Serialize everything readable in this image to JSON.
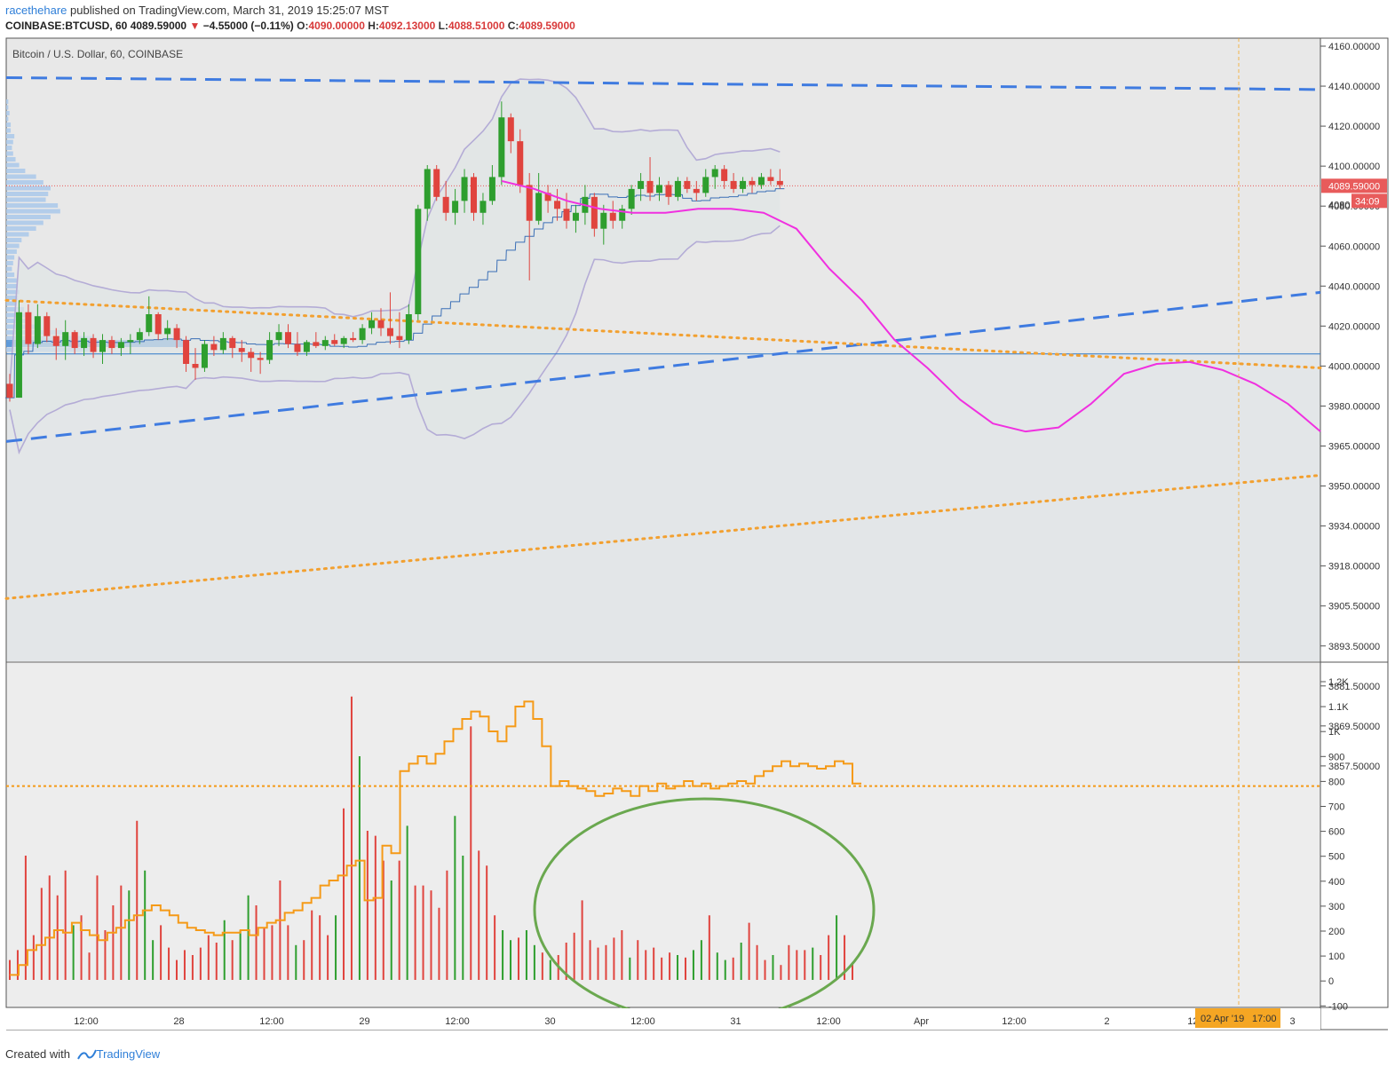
{
  "header": {
    "author": "racethehare",
    "published_text": "published on TradingView.com, March 31, 2019 15:25:07 MST",
    "symbol": "COINBASE:BTCUSD, 60",
    "last": "4089.59000",
    "change": "−4.55000 (−0.11%)",
    "open_label": "O:",
    "open": "4090.00000",
    "high_label": "H:",
    "high": "4092.13000",
    "low_label": "L:",
    "low": "4088.51000",
    "close_label": "C:",
    "close": "4089.59000"
  },
  "colors": {
    "up": "#2e9e2e",
    "down": "#e0443e",
    "bollinger": "#b4acd6",
    "bb_fill": "#dfe6e6",
    "trend_blue": "#3f7be0",
    "trend_orange": "#f2a030",
    "forecast": "#f030e0",
    "volume_ma": "#f59a17",
    "ellipse": "#6aa84f",
    "price_tag": "#e85b5b",
    "date_tag": "#f5a623"
  },
  "chart_data": [
    {
      "type": "candlestick",
      "title": "Bitcoin / U.S. Dollar, 60, COINBASE",
      "y_ticks": [
        "4160.00000",
        "4140.00000",
        "4120.00000",
        "4100.00000",
        "4080.00000",
        "4060.00000",
        "4040.00000",
        "4020.00000",
        "4000.00000",
        "3980.00000",
        "3965.00000",
        "3950.00000",
        "3934.00000",
        "3918.00000",
        "3905.50000",
        "3893.50000",
        "3881.50000",
        "3869.50000",
        "3857.50000"
      ],
      "x_ticks": [
        "12:00",
        "28",
        "12:00",
        "29",
        "12:00",
        "30",
        "12:00",
        "31",
        "12:00",
        "Apr",
        "12:00",
        "2",
        "12:00",
        "3"
      ],
      "last_price_label": "4089.59000",
      "countdown_label": "34:09",
      "hidden_axis_label": "4080",
      "crosshair_date_label": "02 Apr '19",
      "crosshair_time_label": "17:00",
      "candles_ohlc": [
        [
          3990,
          3995,
          3981,
          3983
        ],
        [
          3983,
          4032,
          3983,
          4026
        ],
        [
          4026,
          4030,
          4005,
          4010
        ],
        [
          4010,
          4030,
          4008,
          4024
        ],
        [
          4024,
          4026,
          4011,
          4014
        ],
        [
          4014,
          4018,
          4002,
          4009
        ],
        [
          4009,
          4022,
          4002,
          4016
        ],
        [
          4016,
          4017,
          4005,
          4008
        ],
        [
          4008,
          4016,
          4004,
          4013
        ],
        [
          4013,
          4015,
          4003,
          4006
        ],
        [
          4006,
          4015,
          4000,
          4012
        ],
        [
          4012,
          4014,
          4005,
          4008
        ],
        [
          4008,
          4013,
          4004,
          4011
        ],
        [
          4011,
          4015,
          4005,
          4012
        ],
        [
          4012,
          4018,
          4010,
          4016
        ],
        [
          4016,
          4034,
          4014,
          4025
        ],
        [
          4025,
          4026,
          4012,
          4015
        ],
        [
          4015,
          4022,
          4012,
          4018
        ],
        [
          4018,
          4020,
          4008,
          4012
        ],
        [
          4012,
          4014,
          3996,
          4000
        ],
        [
          4000,
          4008,
          3992,
          3998
        ],
        [
          3998,
          4012,
          3996,
          4010
        ],
        [
          4010,
          4014,
          4004,
          4007
        ],
        [
          4007,
          4016,
          4005,
          4013
        ],
        [
          4013,
          4014,
          4003,
          4008
        ],
        [
          4008,
          4012,
          4001,
          4006
        ],
        [
          4006,
          4008,
          3996,
          4003
        ],
        [
          4003,
          4006,
          3995,
          4002
        ],
        [
          4002,
          4016,
          4000,
          4012
        ],
        [
          4012,
          4020,
          4009,
          4016
        ],
        [
          4016,
          4020,
          4008,
          4010
        ],
        [
          4010,
          4016,
          4004,
          4006
        ],
        [
          4006,
          4012,
          4004,
          4011
        ],
        [
          4011,
          4016,
          4008,
          4009
        ],
        [
          4009,
          4014,
          4007,
          4012
        ],
        [
          4012,
          4015,
          4009,
          4010
        ],
        [
          4010,
          4014,
          4008,
          4013
        ],
        [
          4013,
          4016,
          4011,
          4012
        ],
        [
          4012,
          4020,
          4010,
          4018
        ],
        [
          4018,
          4026,
          4015,
          4022
        ],
        [
          4022,
          4028,
          4014,
          4018
        ],
        [
          4018,
          4036,
          4010,
          4014
        ],
        [
          4014,
          4026,
          4008,
          4012
        ],
        [
          4012,
          4030,
          4010,
          4025
        ],
        [
          4025,
          4080,
          4022,
          4078
        ],
        [
          4078,
          4100,
          4072,
          4098
        ],
        [
          4098,
          4100,
          4082,
          4084
        ],
        [
          4084,
          4092,
          4072,
          4076
        ],
        [
          4076,
          4088,
          4070,
          4082
        ],
        [
          4082,
          4098,
          4076,
          4094
        ],
        [
          4094,
          4096,
          4072,
          4076
        ],
        [
          4076,
          4086,
          4070,
          4082
        ],
        [
          4082,
          4100,
          4080,
          4094
        ],
        [
          4094,
          4132,
          4090,
          4124
        ],
        [
          4124,
          4126,
          4106,
          4112
        ],
        [
          4112,
          4118,
          4086,
          4090
        ],
        [
          4090,
          4096,
          4042,
          4072
        ],
        [
          4072,
          4096,
          4070,
          4086
        ],
        [
          4086,
          4090,
          4076,
          4082
        ],
        [
          4082,
          4088,
          4072,
          4078
        ],
        [
          4078,
          4086,
          4068,
          4072
        ],
        [
          4072,
          4080,
          4066,
          4076
        ],
        [
          4076,
          4090,
          4070,
          4084
        ],
        [
          4084,
          4086,
          4064,
          4068
        ],
        [
          4068,
          4080,
          4060,
          4076
        ],
        [
          4076,
          4082,
          4068,
          4072
        ],
        [
          4072,
          4080,
          4068,
          4078
        ],
        [
          4078,
          4090,
          4075,
          4088
        ],
        [
          4088,
          4096,
          4082,
          4092
        ],
        [
          4092,
          4104,
          4082,
          4086
        ],
        [
          4086,
          4094,
          4082,
          4090
        ],
        [
          4090,
          4092,
          4080,
          4084
        ],
        [
          4084,
          4094,
          4082,
          4092
        ],
        [
          4092,
          4094,
          4086,
          4088
        ],
        [
          4088,
          4092,
          4082,
          4086
        ],
        [
          4086,
          4098,
          4084,
          4094
        ],
        [
          4094,
          4100,
          4088,
          4098
        ],
        [
          4098,
          4100,
          4088,
          4092
        ],
        [
          4092,
          4096,
          4086,
          4088
        ],
        [
          4088,
          4094,
          4086,
          4092
        ],
        [
          4092,
          4094,
          4086,
          4090
        ],
        [
          4090,
          4096,
          4088,
          4094
        ],
        [
          4094,
          4098,
          4090,
          4092
        ],
        [
          4092,
          4098,
          4088,
          4090
        ]
      ],
      "forecast_path": [
        [
          4092,
          4088
        ],
        [
          4082,
          4078
        ],
        [
          4076,
          4076
        ],
        [
          4078,
          4078
        ],
        [
          4076,
          4068
        ],
        [
          4048,
          4032
        ],
        [
          4012,
          3998
        ],
        [
          3982,
          3970
        ],
        [
          3966,
          3968
        ],
        [
          3980,
          3995
        ],
        [
          4000,
          4001
        ],
        [
          3997,
          3990
        ],
        [
          3980,
          3966
        ]
      ],
      "horizontal_level": 4005,
      "trend_lines": [
        {
          "style": "blue-dashed",
          "from": 4144,
          "to": 4138
        },
        {
          "style": "blue-dashed",
          "from": 3961,
          "to": 4036
        },
        {
          "style": "orange-dotted",
          "from": 4032,
          "to": 3998
        },
        {
          "style": "orange-dotted",
          "from": 3882,
          "to": 3944
        }
      ],
      "volume_profile": [
        1,
        1,
        2,
        1,
        3,
        3,
        6,
        5,
        4,
        5,
        7,
        10,
        15,
        24,
        30,
        36,
        34,
        32,
        42,
        44,
        36,
        30,
        24,
        18,
        12,
        10,
        8,
        6,
        5,
        4,
        6,
        8,
        9,
        10,
        9,
        8,
        14,
        18,
        20,
        25,
        46,
        72,
        75,
        68
      ]
    },
    {
      "type": "bar",
      "y_ticks": [
        "1.2K",
        "1.1K",
        "1K",
        "900",
        "800",
        "700",
        "600",
        "500",
        "400",
        "300",
        "200",
        "100",
        "0",
        "-100"
      ],
      "ma_level": 780,
      "volumes": [
        80,
        120,
        500,
        180,
        370,
        420,
        340,
        440,
        220,
        260,
        110,
        420,
        200,
        300,
        380,
        360,
        640,
        440,
        160,
        220,
        130,
        80,
        120,
        100,
        130,
        180,
        150,
        240,
        160,
        200,
        340,
        300,
        210,
        220,
        400,
        220,
        140,
        160,
        280,
        260,
        180,
        260,
        690,
        1140,
        900,
        600,
        580,
        480,
        400,
        480,
        620,
        380,
        380,
        360,
        290,
        440,
        660,
        500,
        1020,
        520,
        460,
        260,
        200,
        160,
        170,
        200,
        140,
        110,
        80,
        100,
        150,
        190,
        320,
        160,
        130,
        140,
        170,
        200,
        90,
        160,
        120,
        130,
        90,
        110,
        100,
        90,
        120,
        160,
        260,
        110,
        80,
        90,
        150,
        230,
        140,
        80,
        100,
        60,
        140,
        120,
        120,
        130,
        100,
        180,
        260,
        180,
        70
      ],
      "volume_ma": [
        20,
        60,
        120,
        140,
        170,
        200,
        190,
        230,
        200,
        180,
        160,
        190,
        210,
        240,
        260,
        280,
        300,
        280,
        260,
        230,
        210,
        200,
        190,
        180,
        190,
        190,
        200,
        180,
        210,
        230,
        240,
        270,
        280,
        310,
        330,
        380,
        400,
        420,
        460,
        480,
        320,
        330,
        540,
        510,
        840,
        870,
        900,
        870,
        910,
        960,
        1010,
        1050,
        1080,
        1060,
        1000,
        960,
        1020,
        1100,
        1120,
        1050,
        940,
        780,
        800,
        780,
        770,
        760,
        740,
        750,
        770,
        760,
        740,
        780,
        760,
        790,
        770,
        780,
        800,
        780,
        790,
        770,
        780,
        790,
        800,
        790,
        820,
        840,
        860,
        880,
        860,
        870,
        860,
        850,
        860,
        880,
        870,
        790
      ],
      "volume_ma_line_color_name": "orange"
    }
  ]
}
